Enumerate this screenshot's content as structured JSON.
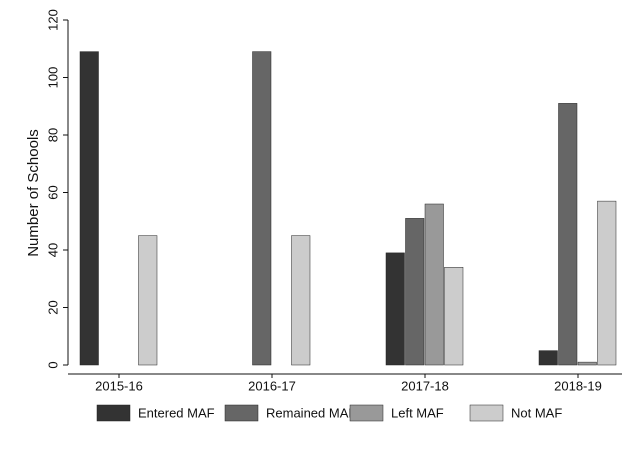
{
  "chart_data": {
    "type": "bar",
    "y_label": "Number of Schools",
    "categories": [
      "2015-16",
      "2016-17",
      "2017-18",
      "2018-19"
    ],
    "series": [
      {
        "name": "Entered MAF",
        "color": "#333333",
        "values": [
          109,
          0,
          39,
          5
        ]
      },
      {
        "name": "Remained MAF",
        "color": "#666666",
        "values": [
          0,
          109,
          51,
          91
        ]
      },
      {
        "name": "Left MAF",
        "color": "#999999",
        "values": [
          0,
          0,
          56,
          1
        ]
      },
      {
        "name": "Not MAF",
        "color": "#cccccc",
        "values": [
          45,
          45,
          34,
          57
        ]
      }
    ],
    "ylim": [
      0,
      120
    ],
    "yticks": [
      0,
      20,
      40,
      60,
      80,
      100,
      120
    ],
    "legend": "bottom"
  }
}
